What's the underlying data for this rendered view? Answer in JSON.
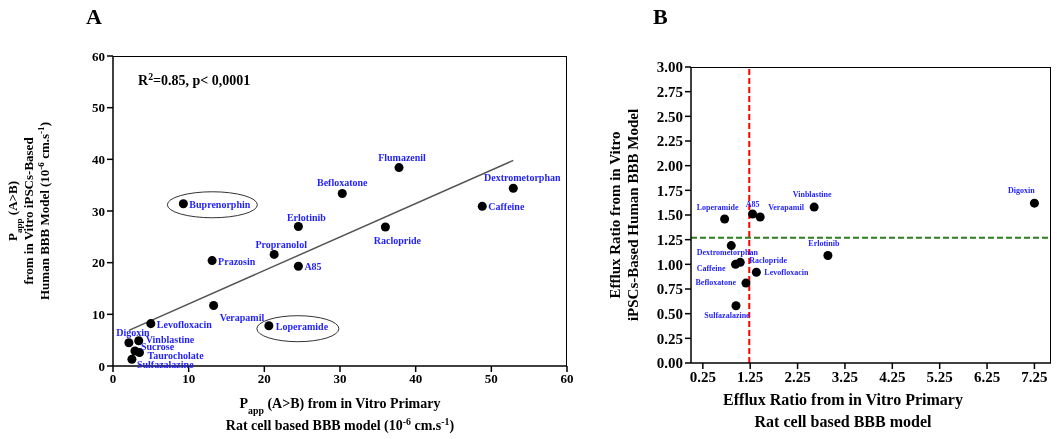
{
  "chart_data": [
    {
      "type": "scatter",
      "title": "A",
      "xlabel": "P$_{app}$ (A>B) from in Vitro Primary\nRat cell based BBB  model (10$^{-6}$ cm.s$^{-1}$)",
      "ylabel": "P$_{app}$ (A>B)\nfrom in Vitro iPSCs-Based\nHuman BBB Model (10$^{-6}$ cm.s$^{-1}$)",
      "xlim": [
        0,
        60
      ],
      "ylim": [
        0,
        60
      ],
      "xticks": [
        0,
        10,
        20,
        30,
        40,
        50,
        60
      ],
      "yticks": [
        0,
        10,
        20,
        30,
        40,
        50,
        60
      ],
      "series": [
        {
          "type": "scatter",
          "marker": "circle",
          "color": "#000000",
          "x": [
            9.3,
            13.1,
            13.3,
            5.0,
            2.1,
            3.4,
            2.9,
            3.5,
            2.5,
            20.6,
            21.3,
            24.5,
            24.5,
            30.3,
            37.8,
            36.0,
            48.8,
            52.9
          ],
          "values": [
            31.4,
            20.4,
            11.7,
            8.2,
            4.5,
            4.9,
            2.9,
            2.6,
            1.3,
            7.8,
            21.6,
            19.3,
            27.0,
            33.4,
            38.4,
            26.9,
            30.9,
            34.4
          ]
        },
        {
          "type": "line",
          "color": "#555555",
          "x": [
            2.1,
            52.9
          ],
          "values": [
            6.9,
            39.8
          ]
        }
      ],
      "annotations": [
        "R$^{2}$=0.85, p< 0,0001",
        {
          "text": "Buprenorphin",
          "x": 9.3,
          "y": 31.4
        },
        {
          "text": "Prazosin",
          "x": 13.1,
          "y": 20.4
        },
        {
          "text": "Verapamil",
          "x": 13.3,
          "y": 11.7
        },
        {
          "text": "Levofloxacin",
          "x": 5.0,
          "y": 8.2
        },
        {
          "text": "Digoxin",
          "x": 2.1,
          "y": 4.5
        },
        {
          "text": "Vinblastine",
          "x": 3.4,
          "y": 4.9
        },
        {
          "text": "Sucrose",
          "x": 2.9,
          "y": 2.9
        },
        {
          "text": "Taurocholate",
          "x": 3.5,
          "y": 2.6
        },
        {
          "text": "Sulfazalazine",
          "x": 2.5,
          "y": 1.3
        },
        {
          "text": "Loperamide",
          "x": 20.6,
          "y": 7.8
        },
        {
          "text": "Propranolol",
          "x": 21.3,
          "y": 21.6
        },
        {
          "text": "A85",
          "x": 24.5,
          "y": 19.3
        },
        {
          "text": "Erlotinib",
          "x": 24.5,
          "y": 27.0
        },
        {
          "text": "Befloxatone",
          "x": 30.3,
          "y": 33.4
        },
        {
          "text": "Flumazenil",
          "x": 37.8,
          "y": 38.4
        },
        {
          "text": "Raclopride",
          "x": 36.0,
          "y": 26.9
        },
        {
          "text": "Caffeine",
          "x": 48.8,
          "y": 30.9
        },
        {
          "text": "Dextrometorphan",
          "x": 52.9,
          "y": 34.4
        }
      ]
    },
    {
      "type": "scatter",
      "title": "B",
      "xlabel": "Efflux Ratio from in Vitro Primary\nRat cell based BBB  model",
      "ylabel": "Efflux Ratio from in Vitro\niPSCs-Based Human BBB Model",
      "xlim": [
        0,
        7.6
      ],
      "ylim": [
        0,
        3
      ],
      "xticks": [
        0.25,
        1.25,
        2.25,
        3.25,
        4.25,
        5.25,
        6.25,
        7.25
      ],
      "yticks": [
        {
          "value": 0,
          "label": "0.00"
        },
        {
          "value": 0.25,
          "label": "0.25"
        },
        {
          "value": 0.5,
          "label": "0.50"
        },
        {
          "value": 0.75,
          "label": "0.75"
        },
        {
          "value": 1,
          "label": "1.00"
        },
        {
          "value": 1.25,
          "label": "1.25"
        },
        {
          "value": 1.5,
          "label": "1.50"
        },
        {
          "value": 1.75,
          "label": "1.75"
        },
        {
          "value": 2,
          "label": "2.00"
        },
        {
          "value": 2.25,
          "label": "2.25"
        },
        {
          "value": 2.5,
          "label": "2.50"
        },
        {
          "value": 2.75,
          "label": "2.75"
        },
        {
          "value": 3,
          "label": "3.00"
        }
      ],
      "marker": "circle",
      "series": [
        {
          "type": "scatter",
          "color": "#000000",
          "x": [
            0.71,
            1.3,
            1.46,
            2.6,
            7.25,
            0.85,
            0.94,
            1.04,
            1.38,
            2.89,
            1.16,
            0.95
          ],
          "values": [
            1.46,
            1.51,
            1.48,
            1.58,
            1.62,
            1.19,
            1.0,
            1.02,
            0.92,
            1.09,
            0.81,
            0.58
          ]
        }
      ],
      "ref_lines": [
        {
          "axis": "x",
          "value": 1.23,
          "color": "#ff0000",
          "line_style": "dashed"
        },
        {
          "axis": "y",
          "value": 1.27,
          "color": "#2e7d1e",
          "line_style": "dashed"
        }
      ],
      "annotations": [
        {
          "text": "Loperamide",
          "x": 0.71,
          "y": 1.46
        },
        {
          "text": "A85",
          "x": 1.3,
          "y": 1.51
        },
        {
          "text": "Verapamil",
          "x": 1.46,
          "y": 1.48
        },
        {
          "text": "Vinblastine",
          "x": 2.6,
          "y": 1.58
        },
        {
          "text": "Digoxin",
          "x": 7.25,
          "y": 1.62
        },
        {
          "text": "Dextrometorphan",
          "x": 0.85,
          "y": 1.19
        },
        {
          "text": "Caffeine",
          "x": 0.94,
          "y": 1.0
        },
        {
          "text": "Raclopride",
          "x": 1.04,
          "y": 1.02
        },
        {
          "text": "Levofloxacin",
          "x": 1.38,
          "y": 0.92
        },
        {
          "text": "Erlotinib",
          "x": 2.89,
          "y": 1.09
        },
        {
          "text": "Befloxatone",
          "x": 1.16,
          "y": 0.81
        },
        {
          "text": "Sulfazalazine",
          "x": 0.95,
          "y": 0.58
        }
      ]
    }
  ]
}
